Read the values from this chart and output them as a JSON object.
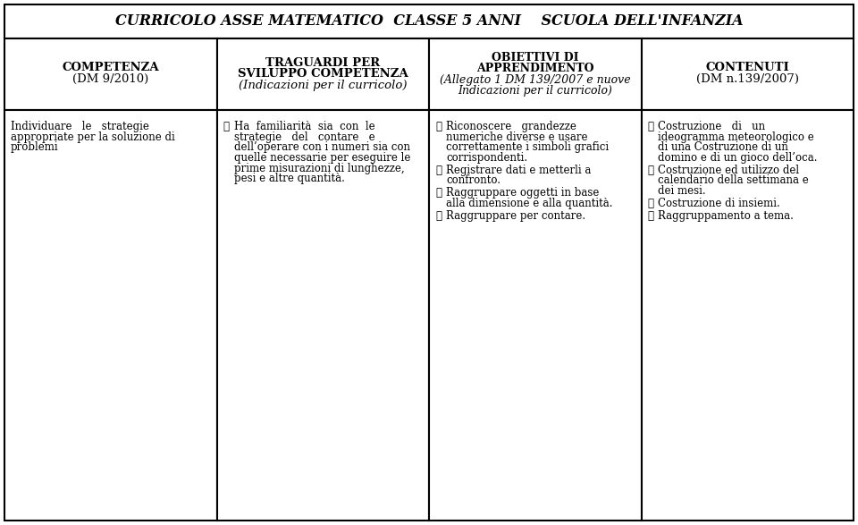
{
  "title": "CURRICOLO ASSE MATEMATICO  CLASSE 5 ANNI    SCUOLA DELL'INFANZIA",
  "col1_header_bold": "COMPETENZA",
  "col1_header_normal": "(DM 9/2010)",
  "col2_header_bold1": "TRAGUARDI PER",
  "col2_header_bold2": "SVILUPPO COMPETENZA",
  "col2_header_italic": "(Indicazioni per il curricolo)",
  "col3_header_bold1": "OBIETTIVI DI",
  "col3_header_bold2": "APPRENDIMENTO",
  "col3_header_italic1": "(Allegato 1 DM 139/2007 e nuove",
  "col3_header_italic2": "Indicazioni per il curricolo)",
  "col4_header_bold": "CONTENUTI",
  "col4_header_normal": "(DM n.139/2007)",
  "col1_body_lines": [
    "Individuare   le   strategie",
    "appropriate per la soluzione di",
    "problemi"
  ],
  "col2_bullets": [
    [
      "Ha  familiarità  sia  con  le",
      "strategie   del   contare   e",
      "dell’operare con i numeri sia con",
      "quelle necessarie per eseguire le",
      "prime misurazioni di lunghezze,",
      "pesi e altre quantità."
    ]
  ],
  "col3_bullets": [
    [
      "Riconoscere   grandezze",
      "numeriche diverse e usare",
      "correttamente i simboli grafici",
      "corrispondenti."
    ],
    [
      "Registrare dati e metterli a",
      "confronto."
    ],
    [
      "Raggruppare oggetti in base",
      "alla dimensione e alla quantità."
    ],
    [
      "Raggruppare per contare."
    ]
  ],
  "col4_bullets": [
    [
      "Costruzione   di   un",
      "ideogramma meteorologico e",
      "di una Costruzione di un",
      "domino e di un gioco dell’oca."
    ],
    [
      "Costruzione ed utilizzo del",
      "calendario della settimana e",
      "dei mesi."
    ],
    [
      "Costruzione di insiemi."
    ],
    [
      "Raggruppamento a tema."
    ]
  ],
  "bullet_char": "➤",
  "bg_color": "#ffffff",
  "border_color": "#000000",
  "text_color": "#000000",
  "title_fontsize": 11.5,
  "header_fontsize": 9.5,
  "body_fontsize": 8.5
}
